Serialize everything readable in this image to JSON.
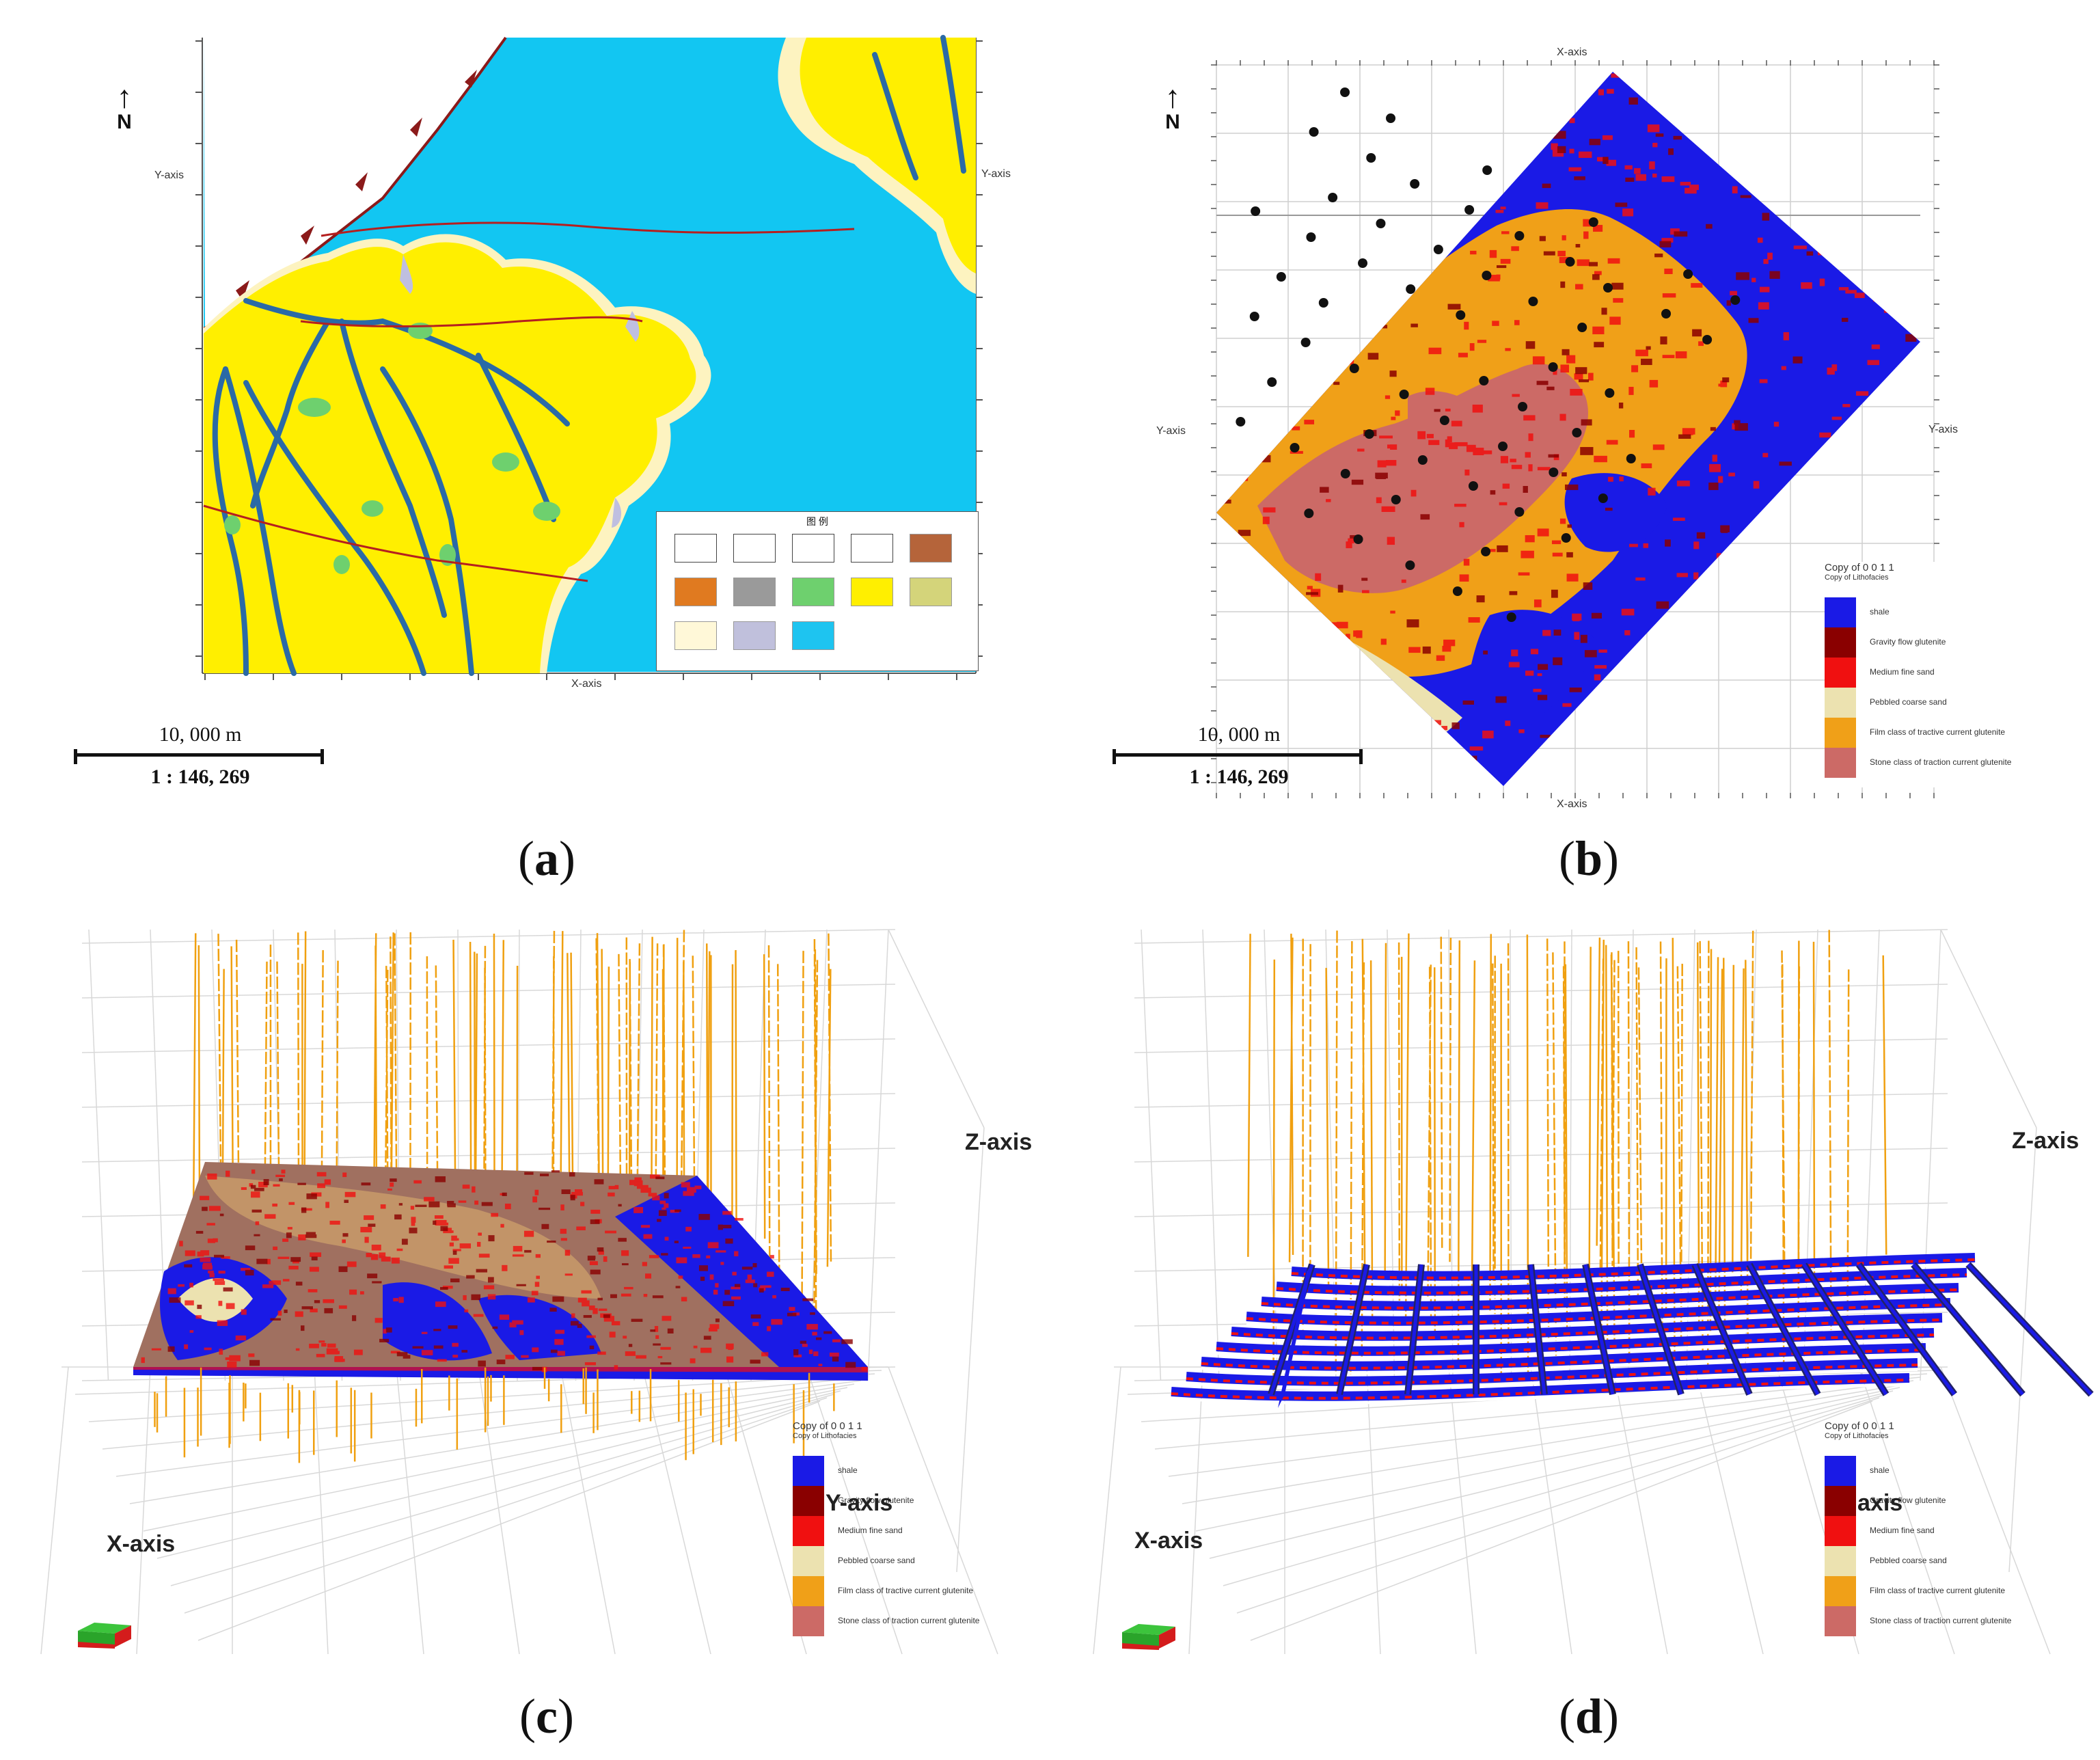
{
  "panels": {
    "a": {
      "caption": "a",
      "north": "N",
      "x_axis": "X-axis",
      "y_axis_left": "Y-axis",
      "y_axis_right": "Y-axis",
      "scale_distance": "10, 000 m",
      "scale_ratio": "1 : 146, 269",
      "map_legend": {
        "title": "图 例",
        "items": [
          "",
          "",
          "",
          "",
          "",
          "",
          "",
          "",
          "",
          "",
          "",
          "",
          ""
        ],
        "colors": [
          "#ffffff",
          "#ffffff",
          "#ffffff",
          "#ffffff",
          "#b5643a",
          "#e07a20",
          "#9a9a9a",
          "#6ed06e",
          "#ffef00",
          "#d4d47a",
          "#fff8d8",
          "#c0c0dc",
          "#1ec4f0"
        ]
      }
    },
    "b": {
      "caption": "b",
      "north": "N",
      "x_axis_top": "X-axis",
      "x_axis_bottom": "X-axis",
      "y_axis_left": "Y-axis",
      "y_axis_right": "Y-axis",
      "scale_distance": "10, 000 m",
      "scale_ratio": "1 : 146, 269",
      "legend_title": "Copy of 0 0 1 1",
      "legend_subtitle": "Copy of Lithofacies"
    },
    "c": {
      "caption": "c",
      "x_axis": "X-axis",
      "y_axis": "Y-axis",
      "z_axis": "Z-axis",
      "legend_title": "Copy of 0 0 1 1",
      "legend_subtitle": "Copy of Lithofacies"
    },
    "d": {
      "caption": "d",
      "x_axis": "X-axis",
      "y_axis": "axis",
      "z_axis": "Z-axis",
      "legend_title": "Copy of 0 0 1 1",
      "legend_subtitle": "Copy of Lithofacies"
    }
  },
  "lithofacies_legend": [
    {
      "label": "shale",
      "color": "#1a1ae6"
    },
    {
      "label": "Gravity flow glutenite",
      "color": "#8a0000"
    },
    {
      "label": "Medium fine sand",
      "color": "#f01010"
    },
    {
      "label": "Pebbled coarse sand",
      "color": "#ece2b0"
    },
    {
      "label": "Film class of tractive current glutenite",
      "color": "#f0a018"
    },
    {
      "label": "Stone class of traction current glutenite",
      "color": "#cc6a66"
    }
  ],
  "colors": {
    "sea": "#12c6f2",
    "delta": "#ffef00",
    "fringe": "#fdf3c0",
    "channel": "#2a6aa6",
    "shale": "#1a1ae6",
    "well": "#f0a010"
  }
}
